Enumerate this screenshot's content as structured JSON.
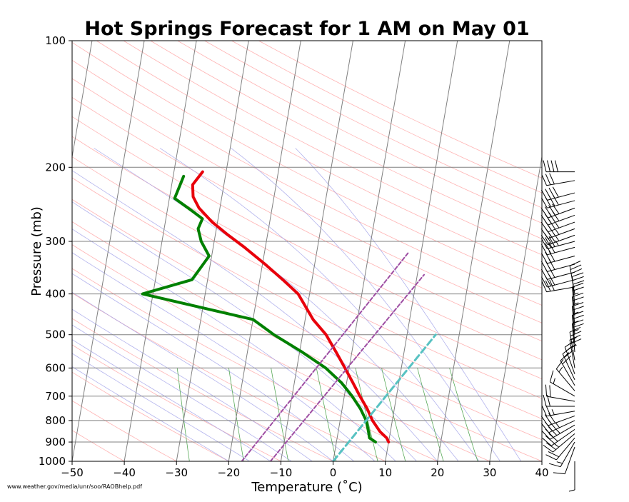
{
  "source_note": "www.weather.gov/media/unr/soo/RAOBhelp.pdf",
  "chart_data": {
    "type": "line",
    "title": "Hot Springs Forecast for 1 AM on May 01",
    "xlabel": "Temperature (˚C)",
    "ylabel": "Pressure (mb)",
    "xlim": [
      -50,
      40
    ],
    "ylim": [
      1000,
      100
    ],
    "y_scale": "log",
    "skew": "skew-T",
    "x_ticks": [
      "−50",
      "−40",
      "−30",
      "−20",
      "−10",
      "0",
      "10",
      "20",
      "30",
      "40"
    ],
    "x_tick_values": [
      -50,
      -40,
      -30,
      -20,
      -10,
      0,
      10,
      20,
      30,
      40
    ],
    "y_ticks": [
      "100",
      "200",
      "300",
      "400",
      "500",
      "600",
      "700",
      "800",
      "900",
      "1000"
    ],
    "y_tick_values": [
      100,
      200,
      300,
      400,
      500,
      600,
      700,
      800,
      900,
      1000
    ],
    "grid": true,
    "series": [
      {
        "role": "temperature",
        "color": "#e8000b",
        "pressure": [
          900,
          880,
          850,
          800,
          750,
          700,
          650,
          600,
          550,
          500,
          460,
          400,
          370,
          340,
          310,
          290,
          270,
          250,
          235,
          220,
          205
        ],
        "temperature": [
          10,
          9.5,
          8,
          6.2,
          4.8,
          3.0,
          1.2,
          -0.8,
          -3.0,
          -5.5,
          -8.5,
          -12.2,
          -15.6,
          -19.5,
          -24.0,
          -27.5,
          -31.0,
          -34.0,
          -35.5,
          -36.0,
          -34.5
        ]
      },
      {
        "role": "dewpoint",
        "color": "#008000",
        "pressure": [
          900,
          880,
          850,
          800,
          750,
          700,
          650,
          600,
          550,
          500,
          460,
          400,
          370,
          325,
          300,
          280,
          265,
          255,
          237,
          210
        ],
        "dewpoint": [
          7.5,
          6.2,
          5.8,
          5.0,
          3.5,
          1.5,
          -1.0,
          -4.5,
          -9.5,
          -15.5,
          -20.0,
          -42.0,
          -33.0,
          -30.5,
          -32.5,
          -33.5,
          -33.0,
          -35.0,
          -39.0,
          -38.0
        ]
      },
      {
        "role": "parcel-ascent",
        "color": "#9e4ea3",
        "pressure": [
          1000,
          360
        ],
        "temperature": [
          -12,
          11.3
        ]
      },
      {
        "role": "parcel-ascent-2",
        "color": "#9e4ea3",
        "pressure": [
          1000,
          320
        ],
        "temperature": [
          -17.5,
          7.5
        ]
      },
      {
        "role": "moist-adiabat-highlight",
        "color": "#58c2c2",
        "pressure": [
          1000,
          500
        ],
        "temperature": [
          0,
          15.5
        ]
      }
    ],
    "background_lines": {
      "isotherms_color": "#808080",
      "dry_adiabats_color": "#ff9a9a",
      "moist_adiabats_color": "#a0a0e8",
      "mixing_ratio_color": "#3c9a3c"
    },
    "wind_barbs": {
      "pressure": [
        1000,
        925,
        900,
        880,
        860,
        840,
        820,
        800,
        780,
        760,
        740,
        720,
        700,
        680,
        660,
        640,
        620,
        600,
        575,
        550,
        525,
        500,
        475,
        450,
        425,
        400,
        385,
        370,
        355,
        340,
        325,
        310,
        300,
        290,
        280,
        270,
        260,
        250,
        240,
        230,
        215,
        205
      ],
      "speed_kt": [
        5,
        10,
        15,
        20,
        25,
        30,
        35,
        35,
        30,
        25,
        20,
        20,
        15,
        15,
        20,
        20,
        20,
        25,
        25,
        25,
        25,
        25,
        25,
        25,
        30,
        30,
        30,
        30,
        30,
        30,
        30,
        30,
        35,
        35,
        35,
        35,
        40,
        40,
        40,
        40,
        30,
        40
      ],
      "from_deg": [
        180,
        200,
        210,
        220,
        230,
        235,
        240,
        245,
        250,
        260,
        270,
        280,
        300,
        320,
        330,
        335,
        340,
        350,
        350,
        355,
        355,
        355,
        355,
        355,
        355,
        350,
        260,
        255,
        255,
        255,
        255,
        255,
        255,
        250,
        250,
        250,
        250,
        250,
        255,
        255,
        260,
        270
      ]
    }
  }
}
